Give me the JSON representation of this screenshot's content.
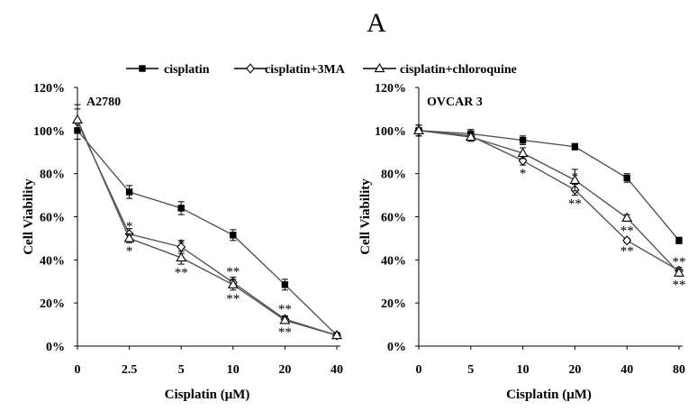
{
  "figure": {
    "panel_label": "A"
  },
  "legend": {
    "entries": [
      {
        "label": "cisplatin",
        "marker": "filled-square"
      },
      {
        "label": "cisplatin+3MA",
        "marker": "open-diamond"
      },
      {
        "label": "cisplatin+chloroquine",
        "marker": "open-triangle"
      }
    ]
  },
  "chart_data": [
    {
      "type": "line",
      "title": "A2780",
      "xlabel": "Cisplatin (μM)",
      "ylabel": "Cell Viability",
      "categories": [
        "0",
        "2.5",
        "5",
        "10",
        "20",
        "40"
      ],
      "ylim": [
        0,
        120
      ],
      "yticks": [
        "0%",
        "20%",
        "40%",
        "60%",
        "80%",
        "100%",
        "120%"
      ],
      "grid": false,
      "series": [
        {
          "name": "cisplatin",
          "values": [
            100,
            71.5,
            64,
            51.5,
            28.5,
            5
          ],
          "errors": [
            4,
            3,
            3,
            2.5,
            2.5,
            1
          ]
        },
        {
          "name": "cisplatin+3MA",
          "values": [
            104,
            52,
            46,
            29.5,
            12.5,
            5
          ],
          "errors": [
            8,
            2.5,
            3,
            2.5,
            1.5,
            1
          ]
        },
        {
          "name": "cisplatin+chloroquine",
          "values": [
            105,
            50,
            41,
            28.5,
            12,
            5
          ],
          "errors": [
            5,
            2,
            3,
            2.5,
            1.5,
            1
          ]
        }
      ],
      "annotations": [
        {
          "category": "2.5",
          "text": "*",
          "position": "above"
        },
        {
          "category": "2.5",
          "text": "*",
          "position": "below"
        },
        {
          "category": "5",
          "text": "*",
          "position": "above"
        },
        {
          "category": "5",
          "text": "**",
          "position": "below"
        },
        {
          "category": "10",
          "text": "**",
          "position": "above"
        },
        {
          "category": "10",
          "text": "**",
          "position": "below"
        },
        {
          "category": "20",
          "text": "**",
          "position": "above"
        },
        {
          "category": "20",
          "text": "**",
          "position": "below"
        }
      ]
    },
    {
      "type": "line",
      "title": "OVCAR 3",
      "xlabel": "Cisplatin (μM)",
      "ylabel": "Cell Viability",
      "categories": [
        "0",
        "5",
        "10",
        "20",
        "40",
        "80"
      ],
      "ylim": [
        0,
        120
      ],
      "yticks": [
        "0%",
        "20%",
        "40%",
        "60%",
        "80%",
        "100%",
        "120%"
      ],
      "grid": false,
      "series": [
        {
          "name": "cisplatin",
          "values": [
            100,
            98.5,
            95.5,
            92.5,
            78,
            49
          ],
          "errors": [
            2.5,
            2,
            2,
            1.5,
            2,
            1.5
          ]
        },
        {
          "name": "cisplatin+3MA",
          "values": [
            100,
            97.5,
            86,
            72.5,
            49,
            35
          ],
          "errors": [
            2.5,
            2,
            2,
            2.5,
            1,
            1.5
          ]
        },
        {
          "name": "cisplatin+chloroquine",
          "values": [
            100,
            97,
            89.5,
            77,
            59.5,
            34
          ],
          "errors": [
            2.5,
            2,
            2.5,
            5,
            1.5,
            1.5
          ]
        }
      ],
      "annotations": [
        {
          "category": "10",
          "text": "*",
          "position": "below"
        },
        {
          "category": "20",
          "text": "*",
          "position": "above"
        },
        {
          "category": "20",
          "text": "**",
          "position": "below"
        },
        {
          "category": "40",
          "text": "**",
          "position": "above"
        },
        {
          "category": "40",
          "text": "**",
          "position": "below"
        },
        {
          "category": "80",
          "text": "**",
          "position": "above"
        },
        {
          "category": "80",
          "text": "**",
          "position": "below"
        }
      ]
    }
  ]
}
